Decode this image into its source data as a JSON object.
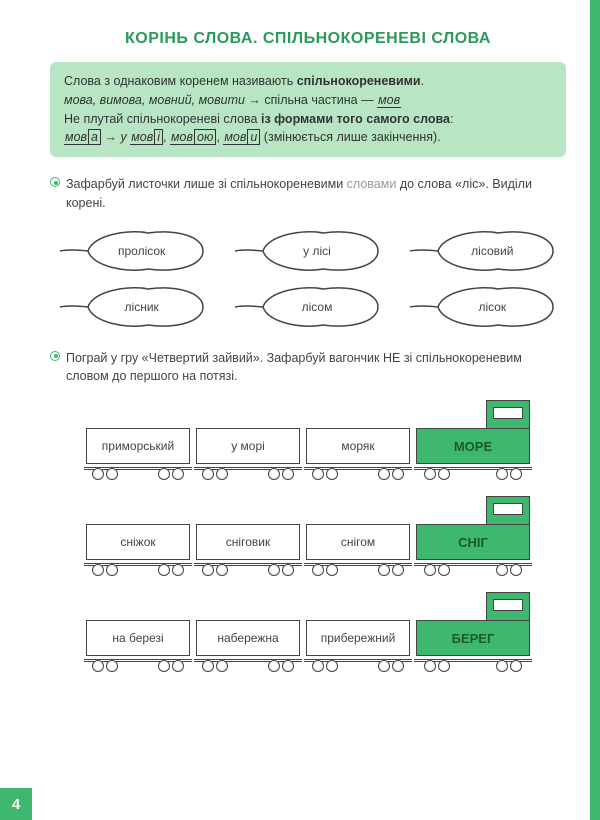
{
  "title": "КОРІНЬ СЛОВА. СПІЛЬНОКОРЕНЕВІ СЛОВА",
  "info": {
    "line1a": "Слова з однаковим коренем називають ",
    "line1b": "спільнокореневими",
    "line2_words": "мова, вимова, мовний, мовити",
    "line2_arrow": " → ",
    "line2_rest": "спільна частина — ",
    "line2_root": "мов",
    "line3a": "Не плутай спільнокореневі слова ",
    "line3b": "із формами того самого слова",
    "line4_w1": "мов",
    "line4_b1": "а",
    "line4_arr": " → ",
    "line4_pre2": "у ",
    "line4_w2": "мов",
    "line4_b2": "і",
    "line4_w3": "мов",
    "line4_b3": "ою",
    "line4_w4": "мов",
    "line4_b4": "и",
    "line4_tail": " (змінюється лише закінчення)."
  },
  "task1": {
    "text_a": "Зафарбуй листочки лише зі спільнокореневими ",
    "text_gray": "словами",
    "text_b": " до слова «ліс». Виділи корені."
  },
  "leaves": {
    "row1": [
      "пролісок",
      "у лісі",
      "лісовий"
    ],
    "row2": [
      "лісник",
      "лісом",
      "лісок"
    ]
  },
  "task2": {
    "text": "Пограй у гру «Четвертий зайвий». Зафарбуй вагончик НЕ зі спільно­кореневим словом до першого на потязі."
  },
  "trains": [
    {
      "wagons": [
        "приморський",
        "у морі",
        "моряк"
      ],
      "loco": "МОРЕ"
    },
    {
      "wagons": [
        "сніжок",
        "сніговик",
        "снігом"
      ],
      "loco": "СНІГ"
    },
    {
      "wagons": [
        "на березі",
        "набережна",
        "прибережний"
      ],
      "loco": "БЕРЕГ"
    }
  ],
  "page_number": "4",
  "colors": {
    "accent": "#3eb86f"
  }
}
